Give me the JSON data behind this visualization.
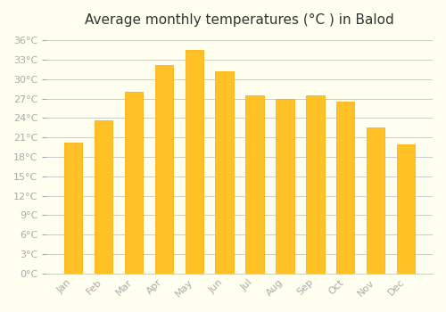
{
  "months": [
    "Jan",
    "Feb",
    "Mar",
    "Apr",
    "May",
    "Jun",
    "Jul",
    "Aug",
    "Sep",
    "Oct",
    "Nov",
    "Dec"
  ],
  "temperatures": [
    20.2,
    23.6,
    28.0,
    32.2,
    34.5,
    31.2,
    27.5,
    27.0,
    27.5,
    26.5,
    22.5,
    20.0
  ],
  "bar_color": "#FFC125",
  "bar_edge_color": "#FFA500",
  "title": "Average monthly temperatures (°C ) in Balod",
  "title_fontsize": 11,
  "yticks": [
    0,
    3,
    6,
    9,
    12,
    15,
    18,
    21,
    24,
    27,
    30,
    33,
    36
  ],
  "ylim": [
    0,
    37
  ],
  "background_color": "#FFFFF0",
  "grid_color": "#CCCCCC",
  "tick_label_color": "#AAAAAA",
  "axis_label_color": "#AAAAAA",
  "bar_width": 0.6
}
